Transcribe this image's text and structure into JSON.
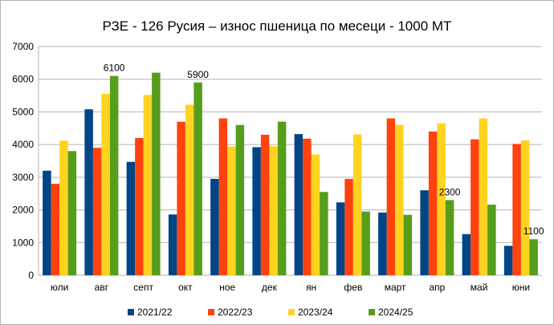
{
  "chart_data": {
    "type": "bar",
    "title": "РЗЕ - 126  Русия – износ пшеница по месеци - 1000 МТ",
    "xlabel": "",
    "ylabel": "",
    "ylim": [
      0,
      7000
    ],
    "yticks": [
      "0",
      "1000",
      "2000",
      "3000",
      "4000",
      "5000",
      "6000",
      "7000"
    ],
    "grid": true,
    "legend_position": "bottom",
    "categories": [
      "юли",
      "авг",
      "септ",
      "окт",
      "ное",
      "дек",
      "ян",
      "фев",
      "март",
      "апр",
      "май",
      "юни"
    ],
    "series": [
      {
        "name": "2021/22",
        "color": "#004586",
        "values": [
          3200,
          5080,
          3470,
          1860,
          2950,
          3920,
          4320,
          2230,
          1920,
          2600,
          1260,
          900
        ]
      },
      {
        "name": "2022/23",
        "color": "#ff420e",
        "values": [
          2800,
          3900,
          4200,
          4700,
          4800,
          4300,
          4180,
          2950,
          4800,
          4400,
          4160,
          4020
        ]
      },
      {
        "name": "2023/24",
        "color": "#ffd320",
        "values": [
          4120,
          5550,
          5520,
          5220,
          3940,
          3950,
          3700,
          4310,
          4600,
          4650,
          4800,
          4130
        ]
      },
      {
        "name": "2024/25",
        "color": "#579d1c",
        "values": [
          3800,
          6100,
          6200,
          5900,
          4600,
          4700,
          2550,
          1950,
          1850,
          2300,
          2160,
          1100
        ]
      }
    ],
    "data_labels": [
      {
        "series": 3,
        "index": 1,
        "text": "6100"
      },
      {
        "series": 3,
        "index": 3,
        "text": "5900"
      },
      {
        "series": 3,
        "index": 9,
        "text": "2300"
      },
      {
        "series": 3,
        "index": 11,
        "text": "1100"
      }
    ]
  }
}
